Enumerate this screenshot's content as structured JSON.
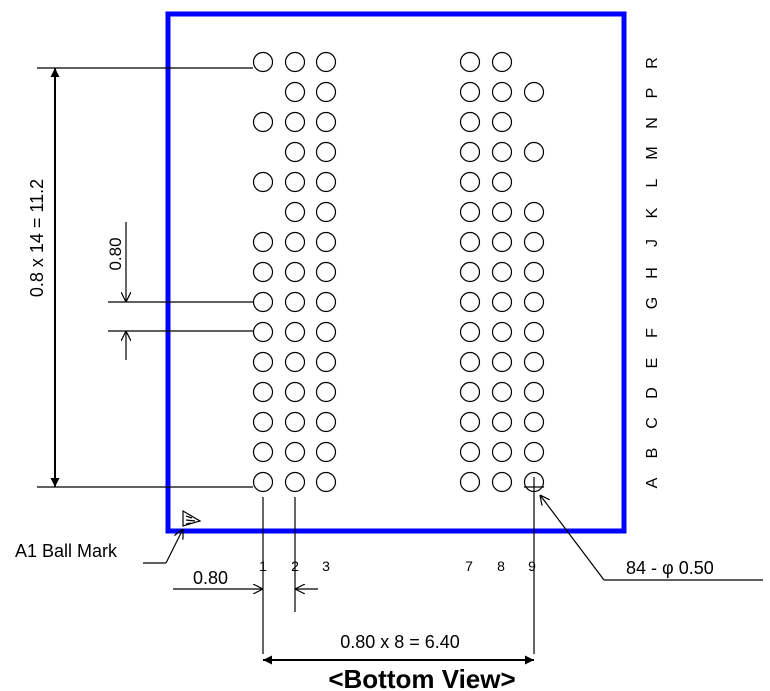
{
  "view_title": "<Bottom View>",
  "pitch_label": "0.80",
  "height_dim_label": "0.8 x 14 = 11.2",
  "width_dim_label": "0.80 x 8 = 6.40",
  "bottom_pitch_label": "0.80",
  "ball_spec_label": "84 - φ 0.50",
  "a1_mark_label": "A1 Ball Mark",
  "column_labels": [
    "1",
    "2",
    "3",
    "7",
    "8",
    "9"
  ],
  "row_labels": [
    "A",
    "B",
    "C",
    "D",
    "E",
    "F",
    "G",
    "H",
    "J",
    "K",
    "L",
    "M",
    "N",
    "P",
    "R"
  ],
  "ball_map": {
    "R": [
      true,
      true,
      true,
      true,
      true,
      false
    ],
    "P": [
      false,
      true,
      true,
      true,
      true,
      true
    ],
    "N": [
      true,
      true,
      true,
      true,
      true,
      false
    ],
    "M": [
      false,
      true,
      true,
      true,
      true,
      true
    ],
    "L": [
      true,
      true,
      true,
      true,
      true,
      false
    ],
    "K": [
      false,
      true,
      true,
      true,
      true,
      true
    ],
    "J": [
      true,
      true,
      true,
      true,
      true,
      true
    ],
    "H": [
      true,
      true,
      true,
      true,
      true,
      true
    ],
    "G": [
      true,
      true,
      true,
      true,
      true,
      true
    ],
    "F": [
      true,
      true,
      true,
      true,
      true,
      true
    ],
    "E": [
      true,
      true,
      true,
      true,
      true,
      true
    ],
    "D": [
      true,
      true,
      true,
      true,
      true,
      true
    ],
    "C": [
      true,
      true,
      true,
      true,
      true,
      true
    ],
    "B": [
      true,
      true,
      true,
      true,
      true,
      true
    ],
    "A": [
      true,
      true,
      true,
      true,
      true,
      true
    ]
  },
  "colors": {
    "package_outline": "#0000ff",
    "lines": "#000000"
  }
}
